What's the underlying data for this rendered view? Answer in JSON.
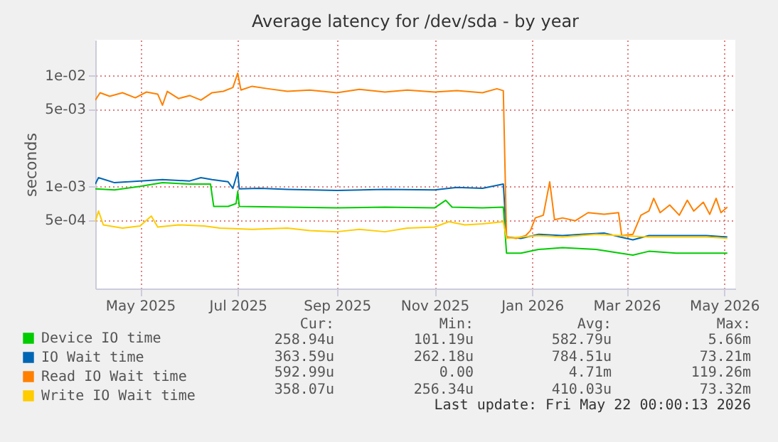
{
  "chart_data": {
    "type": "line",
    "title": "Average latency for /dev/sda - by year",
    "ylabel": "seconds",
    "log": "y",
    "grid": true,
    "legend": "bottom left",
    "xlim": [
      "2025-04-03",
      "2026-05-08"
    ],
    "xticks": [
      {
        "value": "2025-05-01",
        "label": "May 2025"
      },
      {
        "value": "2025-07-01",
        "label": "Jul 2025"
      },
      {
        "value": "2025-09-01",
        "label": "Sep 2025"
      },
      {
        "value": "2025-11-01",
        "label": "Nov 2025"
      },
      {
        "value": "2026-01-01",
        "label": "Jan 2026"
      },
      {
        "value": "2026-03-01",
        "label": "Mar 2026"
      },
      {
        "value": "2026-05-01",
        "label": "May 2026"
      }
    ],
    "ylim": [
      0.00012,
      0.021
    ],
    "yticks": [
      {
        "value": 0.0005,
        "label": "5e-04"
      },
      {
        "value": 0.001,
        "label": "1e-03"
      },
      {
        "value": 0.005,
        "label": "5e-03"
      },
      {
        "value": 0.01,
        "label": "1e-02"
      }
    ],
    "series": [
      {
        "name": "Device IO time",
        "color": "#00cc00",
        "x": [
          "2025-04-03",
          "2025-04-15",
          "2025-05-01",
          "2025-05-15",
          "2025-06-01",
          "2025-06-14",
          "2025-06-16",
          "2025-06-25",
          "2025-06-30",
          "2025-07-01",
          "2025-07-02",
          "2025-08-01",
          "2025-09-01",
          "2025-10-01",
          "2025-11-01",
          "2025-11-08",
          "2025-11-12",
          "2025-12-01",
          "2025-12-14",
          "2025-12-16",
          "2025-12-25",
          "2026-01-05",
          "2026-01-20",
          "2026-02-10",
          "2026-02-25",
          "2026-03-05",
          "2026-03-15",
          "2026-04-01",
          "2026-04-20",
          "2026-05-03"
        ],
        "values": [
          0.00095,
          0.00093,
          0.001,
          0.00108,
          0.00105,
          0.00105,
          0.00066,
          0.00066,
          0.0007,
          0.0009,
          0.00066,
          0.00065,
          0.00064,
          0.00065,
          0.00064,
          0.00075,
          0.00065,
          0.00064,
          0.00065,
          0.00025,
          0.00025,
          0.00027,
          0.00028,
          0.00027,
          0.00025,
          0.00024,
          0.00026,
          0.00025,
          0.00025,
          0.00025
        ]
      },
      {
        "name": "IO Wait time",
        "color": "#0066b3",
        "x": [
          "2025-04-03",
          "2025-04-05",
          "2025-04-15",
          "2025-05-01",
          "2025-05-15",
          "2025-06-01",
          "2025-06-08",
          "2025-06-15",
          "2025-06-25",
          "2025-06-28",
          "2025-07-01",
          "2025-07-02",
          "2025-07-15",
          "2025-08-01",
          "2025-09-01",
          "2025-10-01",
          "2025-11-01",
          "2025-11-15",
          "2025-12-01",
          "2025-12-14",
          "2025-12-16",
          "2025-12-25",
          "2026-01-05",
          "2026-01-20",
          "2026-02-01",
          "2026-02-15",
          "2026-02-25",
          "2026-03-05",
          "2026-03-15",
          "2026-04-01",
          "2026-04-20",
          "2026-05-03"
        ],
        "values": [
          0.00105,
          0.0012,
          0.00108,
          0.00112,
          0.00115,
          0.00112,
          0.0012,
          0.00115,
          0.0011,
          0.00096,
          0.00135,
          0.00095,
          0.00096,
          0.00094,
          0.00092,
          0.00094,
          0.00093,
          0.00098,
          0.00096,
          0.00105,
          0.00035,
          0.00034,
          0.00037,
          0.00036,
          0.00037,
          0.00038,
          0.00035,
          0.00033,
          0.00036,
          0.00036,
          0.00036,
          0.00035
        ]
      },
      {
        "name": "Read IO Wait time",
        "color": "#ff8000",
        "x": [
          "2025-04-03",
          "2025-04-06",
          "2025-04-12",
          "2025-04-20",
          "2025-04-28",
          "2025-05-05",
          "2025-05-12",
          "2025-05-15",
          "2025-05-18",
          "2025-05-25",
          "2025-06-01",
          "2025-06-08",
          "2025-06-15",
          "2025-06-22",
          "2025-06-28",
          "2025-07-01",
          "2025-07-03",
          "2025-07-10",
          "2025-07-20",
          "2025-08-01",
          "2025-08-15",
          "2025-09-01",
          "2025-09-15",
          "2025-10-01",
          "2025-10-15",
          "2025-11-01",
          "2025-11-15",
          "2025-12-01",
          "2025-12-10",
          "2025-12-14",
          "2025-12-16",
          "2025-12-22",
          "2025-12-28",
          "2025-12-31",
          "2026-01-03",
          "2026-01-08",
          "2026-01-12",
          "2026-01-15",
          "2026-01-20",
          "2026-01-28",
          "2026-02-05",
          "2026-02-15",
          "2026-02-24",
          "2026-02-26",
          "2026-03-05",
          "2026-03-10",
          "2026-03-15",
          "2026-03-18",
          "2026-03-22",
          "2026-03-28",
          "2026-04-03",
          "2026-04-08",
          "2026-04-12",
          "2026-04-18",
          "2026-04-22",
          "2026-04-26",
          "2026-04-29",
          "2026-05-03"
        ],
        "values": [
          0.006,
          0.007,
          0.0065,
          0.007,
          0.0063,
          0.0071,
          0.0068,
          0.0054,
          0.0072,
          0.0062,
          0.0066,
          0.006,
          0.007,
          0.0072,
          0.0078,
          0.0105,
          0.0074,
          0.008,
          0.0076,
          0.0072,
          0.0074,
          0.007,
          0.0075,
          0.0071,
          0.0074,
          0.0071,
          0.0073,
          0.007,
          0.0076,
          0.0073,
          0.00035,
          0.00034,
          0.00036,
          0.0004,
          0.00052,
          0.00055,
          0.0011,
          0.0005,
          0.00052,
          0.00049,
          0.00058,
          0.00056,
          0.00058,
          0.00036,
          0.00037,
          0.00055,
          0.0006,
          0.00078,
          0.00058,
          0.00068,
          0.00055,
          0.00075,
          0.0006,
          0.00072,
          0.00056,
          0.00078,
          0.00058,
          0.00065
        ]
      },
      {
        "name": "Write IO Wait time",
        "color": "#ffcc00",
        "x": [
          "2025-04-03",
          "2025-04-05",
          "2025-04-08",
          "2025-04-20",
          "2025-05-01",
          "2025-05-08",
          "2025-05-12",
          "2025-05-25",
          "2025-06-10",
          "2025-06-20",
          "2025-07-10",
          "2025-08-01",
          "2025-08-15",
          "2025-09-01",
          "2025-09-15",
          "2025-10-01",
          "2025-10-15",
          "2025-11-01",
          "2025-11-10",
          "2025-11-20",
          "2025-12-01",
          "2025-12-14",
          "2025-12-16",
          "2025-12-25",
          "2026-01-05",
          "2026-01-20",
          "2026-02-10",
          "2026-02-25",
          "2026-03-15",
          "2026-04-01",
          "2026-04-20",
          "2026-05-03"
        ],
        "values": [
          0.00048,
          0.0006,
          0.00045,
          0.00042,
          0.00044,
          0.00054,
          0.00043,
          0.00045,
          0.00044,
          0.00042,
          0.00041,
          0.00042,
          0.0004,
          0.00039,
          0.00041,
          0.00039,
          0.00042,
          0.00043,
          0.00048,
          0.00045,
          0.00046,
          0.00048,
          0.00034,
          0.00035,
          0.00036,
          0.00035,
          0.00037,
          0.00036,
          0.00035,
          0.00035,
          0.00035,
          0.00034
        ]
      }
    ],
    "annotations": [
      "Cur:",
      "Min:",
      "Avg:",
      "Max:",
      "258.94u",
      "101.19u",
      "582.79u",
      "5.66m",
      "363.59u",
      "262.18u",
      "784.51u",
      "73.21m",
      "592.99u",
      "0.00",
      "4.71m",
      "119.26m",
      "358.07u",
      "256.34u",
      "410.03u",
      "73.32m",
      "Last update: Fri May 22 00:00:13 2026"
    ]
  }
}
